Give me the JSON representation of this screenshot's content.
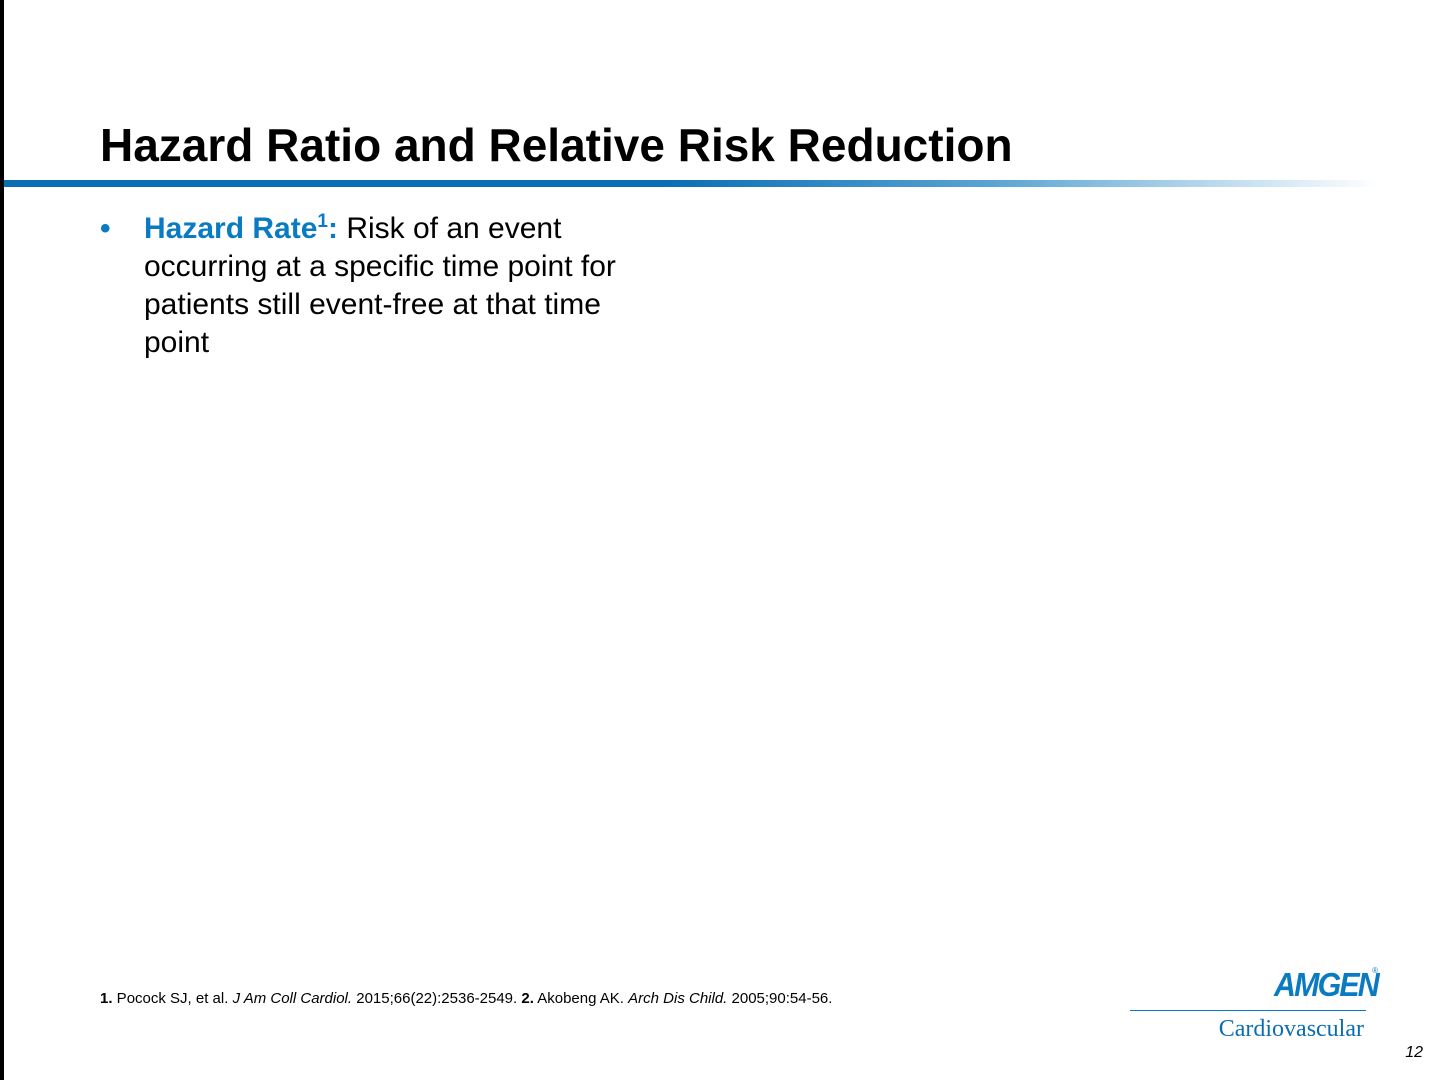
{
  "slide": {
    "title": "Hazard Ratio and Relative Risk Reduction",
    "page_number": "12"
  },
  "bullets": [
    {
      "bullet": "•",
      "term": "Hazard Rate",
      "term_superscript": "1",
      "term_colon": ":",
      "text": " Risk of an event occurring at a specific time point for patients still event-free at that time point"
    }
  ],
  "footnote": {
    "ref1_num": "1.",
    "ref1_author": " Pocock SJ, et al. ",
    "ref1_journal": "J Am Coll Cardiol.",
    "ref1_details": " 2015;66(22):2536-2549. ",
    "ref2_num": "2.",
    "ref2_author": " Akobeng AK. ",
    "ref2_journal": "Arch Dis Child.",
    "ref2_details": " 2005;90:54-56."
  },
  "logo": {
    "brand": "AMGEN",
    "registered": "®",
    "subtitle": "Cardiovascular"
  },
  "colors": {
    "accent": "#0a7bc2",
    "rule": "#0a6eb4",
    "text": "#000000"
  }
}
